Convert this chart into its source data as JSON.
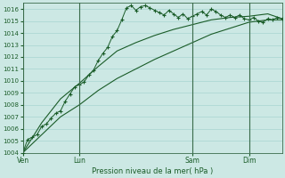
{
  "background_color": "#cce8e4",
  "grid_color": "#a8d4d0",
  "line_color": "#1a5c28",
  "x_tick_labels": [
    "Ven",
    "Lun",
    "Sam",
    "Dim"
  ],
  "x_tick_positions": [
    0,
    12,
    36,
    48
  ],
  "xlabel": "Pression niveau de la mer( hPa )",
  "ylim": [
    1004,
    1016.5
  ],
  "yticks": [
    1004,
    1005,
    1006,
    1007,
    1008,
    1009,
    1010,
    1011,
    1012,
    1013,
    1014,
    1015,
    1016
  ],
  "line1_x": [
    0,
    1,
    2,
    3,
    4,
    5,
    6,
    7,
    8,
    9,
    10,
    11,
    12,
    13,
    14,
    15,
    16,
    17,
    18,
    19,
    20,
    21,
    22,
    23,
    24,
    25,
    26,
    27,
    28,
    29,
    30,
    31,
    32,
    33,
    34,
    35,
    36,
    37,
    38,
    39,
    40,
    41,
    42,
    43,
    44,
    45,
    46,
    47,
    48,
    49,
    50,
    51,
    52,
    53,
    54,
    55
  ],
  "line1_y": [
    1004.0,
    1005.1,
    1005.3,
    1005.5,
    1006.2,
    1006.4,
    1006.9,
    1007.3,
    1007.5,
    1008.3,
    1008.9,
    1009.5,
    1009.7,
    1009.9,
    1010.5,
    1010.9,
    1011.7,
    1012.3,
    1012.8,
    1013.7,
    1014.2,
    1015.1,
    1016.1,
    1016.3,
    1015.9,
    1016.2,
    1016.3,
    1016.1,
    1015.9,
    1015.7,
    1015.5,
    1015.9,
    1015.6,
    1015.3,
    1015.6,
    1015.2,
    1015.4,
    1015.6,
    1015.8,
    1015.5,
    1016.0,
    1015.8,
    1015.5,
    1015.3,
    1015.5,
    1015.3,
    1015.5,
    1015.2,
    1015.1,
    1015.3,
    1015.0,
    1014.9,
    1015.2,
    1015.1,
    1015.3,
    1015.2
  ],
  "line2_x": [
    0,
    4,
    8,
    12,
    16,
    20,
    24,
    28,
    32,
    36,
    40,
    44,
    48,
    52,
    55
  ],
  "line2_y": [
    1004.0,
    1006.5,
    1008.5,
    1009.8,
    1011.2,
    1012.5,
    1013.2,
    1013.8,
    1014.3,
    1014.7,
    1015.1,
    1015.3,
    1015.4,
    1015.6,
    1015.2
  ],
  "line3_x": [
    0,
    4,
    8,
    12,
    16,
    20,
    24,
    28,
    32,
    36,
    40,
    44,
    48,
    52,
    55
  ],
  "line3_y": [
    1004.0,
    1005.5,
    1007.0,
    1008.0,
    1009.2,
    1010.2,
    1011.0,
    1011.8,
    1012.5,
    1013.2,
    1013.9,
    1014.4,
    1014.9,
    1015.1,
    1015.1
  ],
  "vline_positions": [
    0,
    12,
    36,
    48
  ],
  "xlim": [
    0,
    55
  ]
}
